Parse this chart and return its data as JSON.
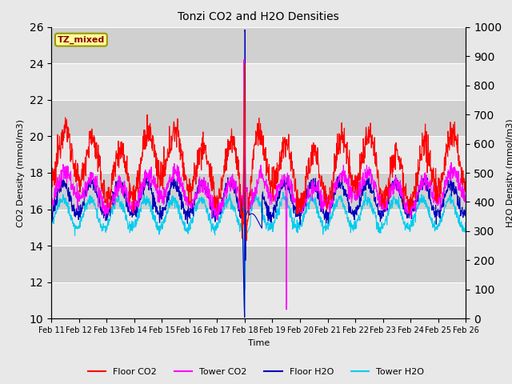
{
  "title": "Tonzi CO2 and H2O Densities",
  "xlabel": "Time",
  "ylabel_left": "CO2 Density (mmol/m3)",
  "ylabel_right": "H2O Density (mmol/m3)",
  "x_labels": [
    "Feb 11",
    "Feb 12",
    "Feb 13",
    "Feb 14",
    "Feb 15",
    "Feb 16",
    "Feb 17",
    "Feb 18",
    "Feb 19",
    "Feb 20",
    "Feb 21",
    "Feb 22",
    "Feb 23",
    "Feb 24",
    "Feb 25",
    "Feb 26"
  ],
  "ylim_left": [
    10,
    26
  ],
  "ylim_right": [
    0,
    1000
  ],
  "yticks_left": [
    10,
    12,
    14,
    16,
    18,
    20,
    22,
    24,
    26
  ],
  "yticks_right": [
    0,
    100,
    200,
    300,
    400,
    500,
    600,
    700,
    800,
    900,
    1000
  ],
  "colors": {
    "floor_co2": "#ff0000",
    "tower_co2": "#ff00ff",
    "floor_h2o": "#0000bb",
    "tower_h2o": "#00ccee"
  },
  "annotation_text": "TZ_mixed",
  "annotation_color": "#8b0000",
  "annotation_bg": "#ffff99",
  "annotation_border": "#999900",
  "bg_light": "#e8e8e8",
  "bg_dark": "#d0d0d0",
  "legend_labels": [
    "Floor CO2",
    "Tower CO2",
    "Floor H2O",
    "Tower H2O"
  ]
}
